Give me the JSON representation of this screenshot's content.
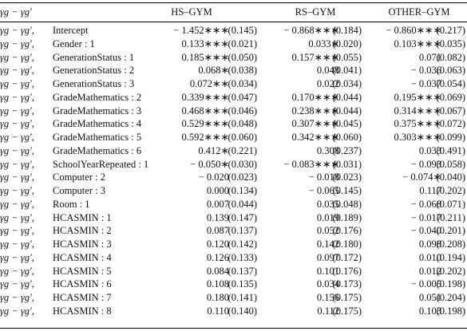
{
  "table": {
    "header_label": "γg − γg′",
    "row_prefix": "γg − γg′,",
    "columns": [
      "HS–GYM",
      "RS–GYM",
      "OTHER–GYM"
    ],
    "rows": [
      {
        "label": "Intercept",
        "cells": [
          "− 1.452∗∗∗",
          "(0.145)",
          "− 0.868∗∗∗",
          "(0.184)",
          "− 0.860∗∗∗",
          "(0.217)"
        ]
      },
      {
        "label": "Gender : 1",
        "cells": [
          "0.133∗∗∗",
          "(0.021)",
          "0.033∗",
          "(0.020)",
          "0.103∗∗∗",
          "(0.035)"
        ]
      },
      {
        "label": "GenerationStatus : 1",
        "cells": [
          "0.185∗∗∗",
          "(0.050)",
          "0.157∗∗∗",
          "(0.055)",
          "0.071",
          "(0.082)"
        ]
      },
      {
        "label": "GenerationStatus : 2",
        "cells": [
          "0.068∗",
          "(0.038)",
          "0.048",
          "(0.041)",
          "− 0.036",
          "(0.063)"
        ]
      },
      {
        "label": "GenerationStatus : 3",
        "cells": [
          "0.072∗∗",
          "(0.034)",
          "0.022",
          "(0.034)",
          "− 0.037",
          "(0.054)"
        ]
      },
      {
        "label": "GradeMathematics : 2",
        "cells": [
          "0.339∗∗∗",
          "(0.047)",
          "0.170∗∗∗",
          "(0.044)",
          "0.195∗∗∗",
          "(0.069)"
        ]
      },
      {
        "label": "GradeMathematics : 3",
        "cells": [
          "0.468∗∗∗",
          "(0.046)",
          "0.238∗∗∗",
          "(0.044)",
          "0.314∗∗∗",
          "(0.067)"
        ]
      },
      {
        "label": "GradeMathematics : 4",
        "cells": [
          "0.529∗∗∗",
          "(0.048)",
          "0.307∗∗∗",
          "(0.045)",
          "0.375∗∗∗",
          "(0.072)"
        ]
      },
      {
        "label": "GradeMathematics : 5",
        "cells": [
          "0.592∗∗∗",
          "(0.060)",
          "0.342∗∗∗",
          "(0.060)",
          "0.303∗∗∗",
          "(0.099)"
        ]
      },
      {
        "label": "GradeMathematics : 6",
        "cells": [
          "0.412∗",
          "(0.221)",
          "0.308",
          "(0.237)",
          "0.033",
          "(0.491)"
        ]
      },
      {
        "label": "SchoolYearRepeated : 1",
        "cells": [
          "− 0.050∗",
          "(0.030)",
          "− 0.083∗∗∗",
          "(0.031)",
          "− 0.093",
          "(0.058)"
        ]
      },
      {
        "label": "Computer : 2",
        "cells": [
          "− 0.020",
          "(0.023)",
          "− 0.018",
          "(0.023)",
          "− 0.074∗",
          "(0.040)"
        ]
      },
      {
        "label": "Computer : 3",
        "cells": [
          "0.000",
          "(0.134)",
          "− 0.065",
          "(0.145)",
          "0.117",
          "(0.202)"
        ]
      },
      {
        "label": "Room : 1",
        "cells": [
          "0.007",
          "(0.044)",
          "0.035",
          "(0.048)",
          "− 0.068",
          "(0.071)"
        ]
      },
      {
        "label": "HCASMIN : 1",
        "cells": [
          "0.139",
          "(0.147)",
          "0.019",
          "(0.189)",
          "− 0.017",
          "(0.211)"
        ]
      },
      {
        "label": "HCASMIN : 2",
        "cells": [
          "0.087",
          "(0.137)",
          "0.052",
          "(0.176)",
          "− 0.040",
          "(0.201)"
        ]
      },
      {
        "label": "HCASMIN : 3",
        "cells": [
          "0.120",
          "(0.142)",
          "0.142",
          "(0.180)",
          "0.098",
          "(0.208)"
        ]
      },
      {
        "label": "HCASMIN : 4",
        "cells": [
          "0.126",
          "(0.133)",
          "0.097",
          "(0.172)",
          "0.010",
          "(0.194)"
        ]
      },
      {
        "label": "HCASMIN : 5",
        "cells": [
          "0.084",
          "(0.137)",
          "0.101",
          "(0.176)",
          "0.012",
          "(0.202)"
        ]
      },
      {
        "label": "HCASMIN : 6",
        "cells": [
          "0.108",
          "(0.135)",
          "0.034",
          "(0.173)",
          "− 0.005",
          "(0.198)"
        ]
      },
      {
        "label": "HCASMIN : 7",
        "cells": [
          "0.180",
          "(0.141)",
          "0.156",
          "(0.175)",
          "0.051",
          "(0.204)"
        ]
      },
      {
        "label": "HCASMIN : 8",
        "cells": [
          "0.110",
          "(0.140)",
          "0.112",
          "(0.175)",
          "0.103",
          "(0.198)"
        ]
      }
    ]
  }
}
